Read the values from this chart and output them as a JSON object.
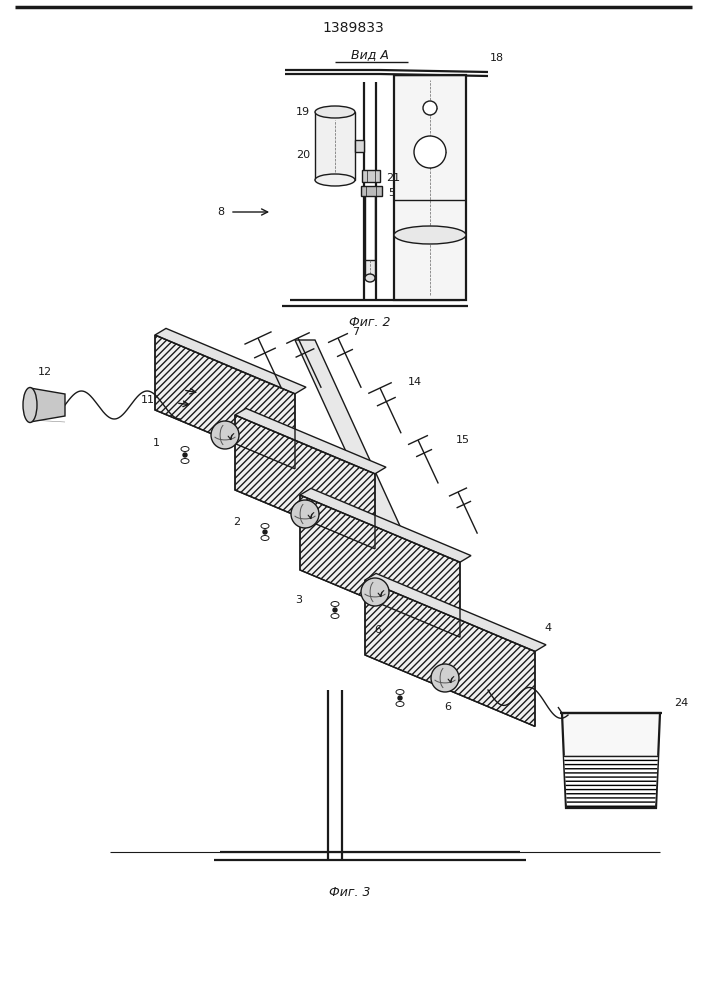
{
  "title": "1389833",
  "fig2_label": "Фиг. 2",
  "fig3_label": "Фиг. 3",
  "vid_a_label": "Вид А",
  "arrow8_label": "8",
  "bg_color": "#ffffff",
  "line_color": "#1a1a1a",
  "hatch_color": "#888888",
  "label_fontsize": 8,
  "title_fontsize": 10
}
